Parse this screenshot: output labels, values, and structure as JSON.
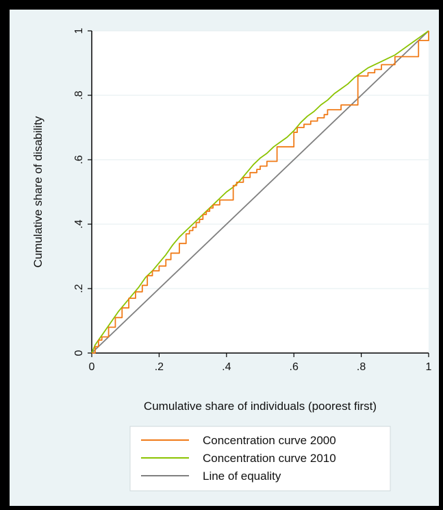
{
  "chart_data": {
    "type": "line",
    "title": "",
    "xlabel": "Cumulative share of individuals (poorest first)",
    "ylabel": "Cumulative share of disability",
    "xlim": [
      0,
      1
    ],
    "ylim": [
      0,
      1
    ],
    "x_ticks": [
      0,
      0.2,
      0.4,
      0.6,
      0.8,
      1
    ],
    "x_tick_labels": [
      "0",
      ".2",
      ".4",
      ".6",
      ".8",
      "1"
    ],
    "y_ticks": [
      0,
      0.2,
      0.4,
      0.6,
      0.8,
      1
    ],
    "y_tick_labels": [
      "0",
      ".2",
      ".4",
      ".6",
      ".8",
      "1"
    ],
    "grid": true,
    "legend_position": "bottom",
    "series": [
      {
        "name": "Concentration curve 2000",
        "color": "#f07a17",
        "step": true,
        "x": [
          0,
          0.01,
          0.02,
          0.03,
          0.05,
          0.07,
          0.09,
          0.11,
          0.13,
          0.15,
          0.155,
          0.165,
          0.18,
          0.2,
          0.22,
          0.235,
          0.26,
          0.28,
          0.29,
          0.3,
          0.31,
          0.32,
          0.33,
          0.34,
          0.35,
          0.36,
          0.38,
          0.42,
          0.43,
          0.45,
          0.47,
          0.49,
          0.5,
          0.52,
          0.55,
          0.57,
          0.6,
          0.61,
          0.63,
          0.65,
          0.67,
          0.69,
          0.7,
          0.74,
          0.79,
          0.8,
          0.82,
          0.84,
          0.86,
          0.9,
          0.95,
          0.97,
          0.99,
          1.0
        ],
        "y": [
          0,
          0.02,
          0.04,
          0.05,
          0.08,
          0.11,
          0.14,
          0.17,
          0.19,
          0.21,
          0.21,
          0.24,
          0.255,
          0.27,
          0.29,
          0.31,
          0.34,
          0.37,
          0.38,
          0.39,
          0.405,
          0.415,
          0.43,
          0.44,
          0.45,
          0.46,
          0.475,
          0.52,
          0.53,
          0.545,
          0.56,
          0.57,
          0.58,
          0.595,
          0.64,
          0.64,
          0.685,
          0.7,
          0.71,
          0.72,
          0.73,
          0.74,
          0.755,
          0.77,
          0.86,
          0.86,
          0.87,
          0.88,
          0.895,
          0.92,
          0.92,
          0.97,
          0.97,
          1.0
        ]
      },
      {
        "name": "Concentration curve 2010",
        "color": "#8bc300",
        "step": false,
        "x": [
          0,
          0.01,
          0.02,
          0.04,
          0.06,
          0.08,
          0.1,
          0.12,
          0.14,
          0.16,
          0.18,
          0.2,
          0.22,
          0.24,
          0.26,
          0.28,
          0.3,
          0.32,
          0.34,
          0.36,
          0.38,
          0.4,
          0.42,
          0.44,
          0.46,
          0.48,
          0.5,
          0.52,
          0.54,
          0.56,
          0.58,
          0.6,
          0.62,
          0.64,
          0.66,
          0.68,
          0.7,
          0.72,
          0.74,
          0.76,
          0.78,
          0.8,
          0.82,
          0.84,
          0.86,
          0.88,
          0.9,
          0.92,
          0.94,
          0.96,
          0.98,
          1.0
        ],
        "y": [
          0,
          0.025,
          0.04,
          0.07,
          0.1,
          0.13,
          0.155,
          0.18,
          0.205,
          0.235,
          0.255,
          0.28,
          0.305,
          0.335,
          0.36,
          0.38,
          0.4,
          0.42,
          0.44,
          0.46,
          0.48,
          0.5,
          0.515,
          0.535,
          0.56,
          0.585,
          0.605,
          0.62,
          0.64,
          0.655,
          0.67,
          0.69,
          0.715,
          0.735,
          0.75,
          0.77,
          0.785,
          0.805,
          0.82,
          0.835,
          0.855,
          0.87,
          0.885,
          0.895,
          0.905,
          0.915,
          0.925,
          0.94,
          0.955,
          0.97,
          0.985,
          1.0
        ]
      },
      {
        "name": "Line of equality",
        "color": "#7f7f7f",
        "step": false,
        "x": [
          0,
          1
        ],
        "y": [
          0,
          1
        ]
      }
    ]
  }
}
